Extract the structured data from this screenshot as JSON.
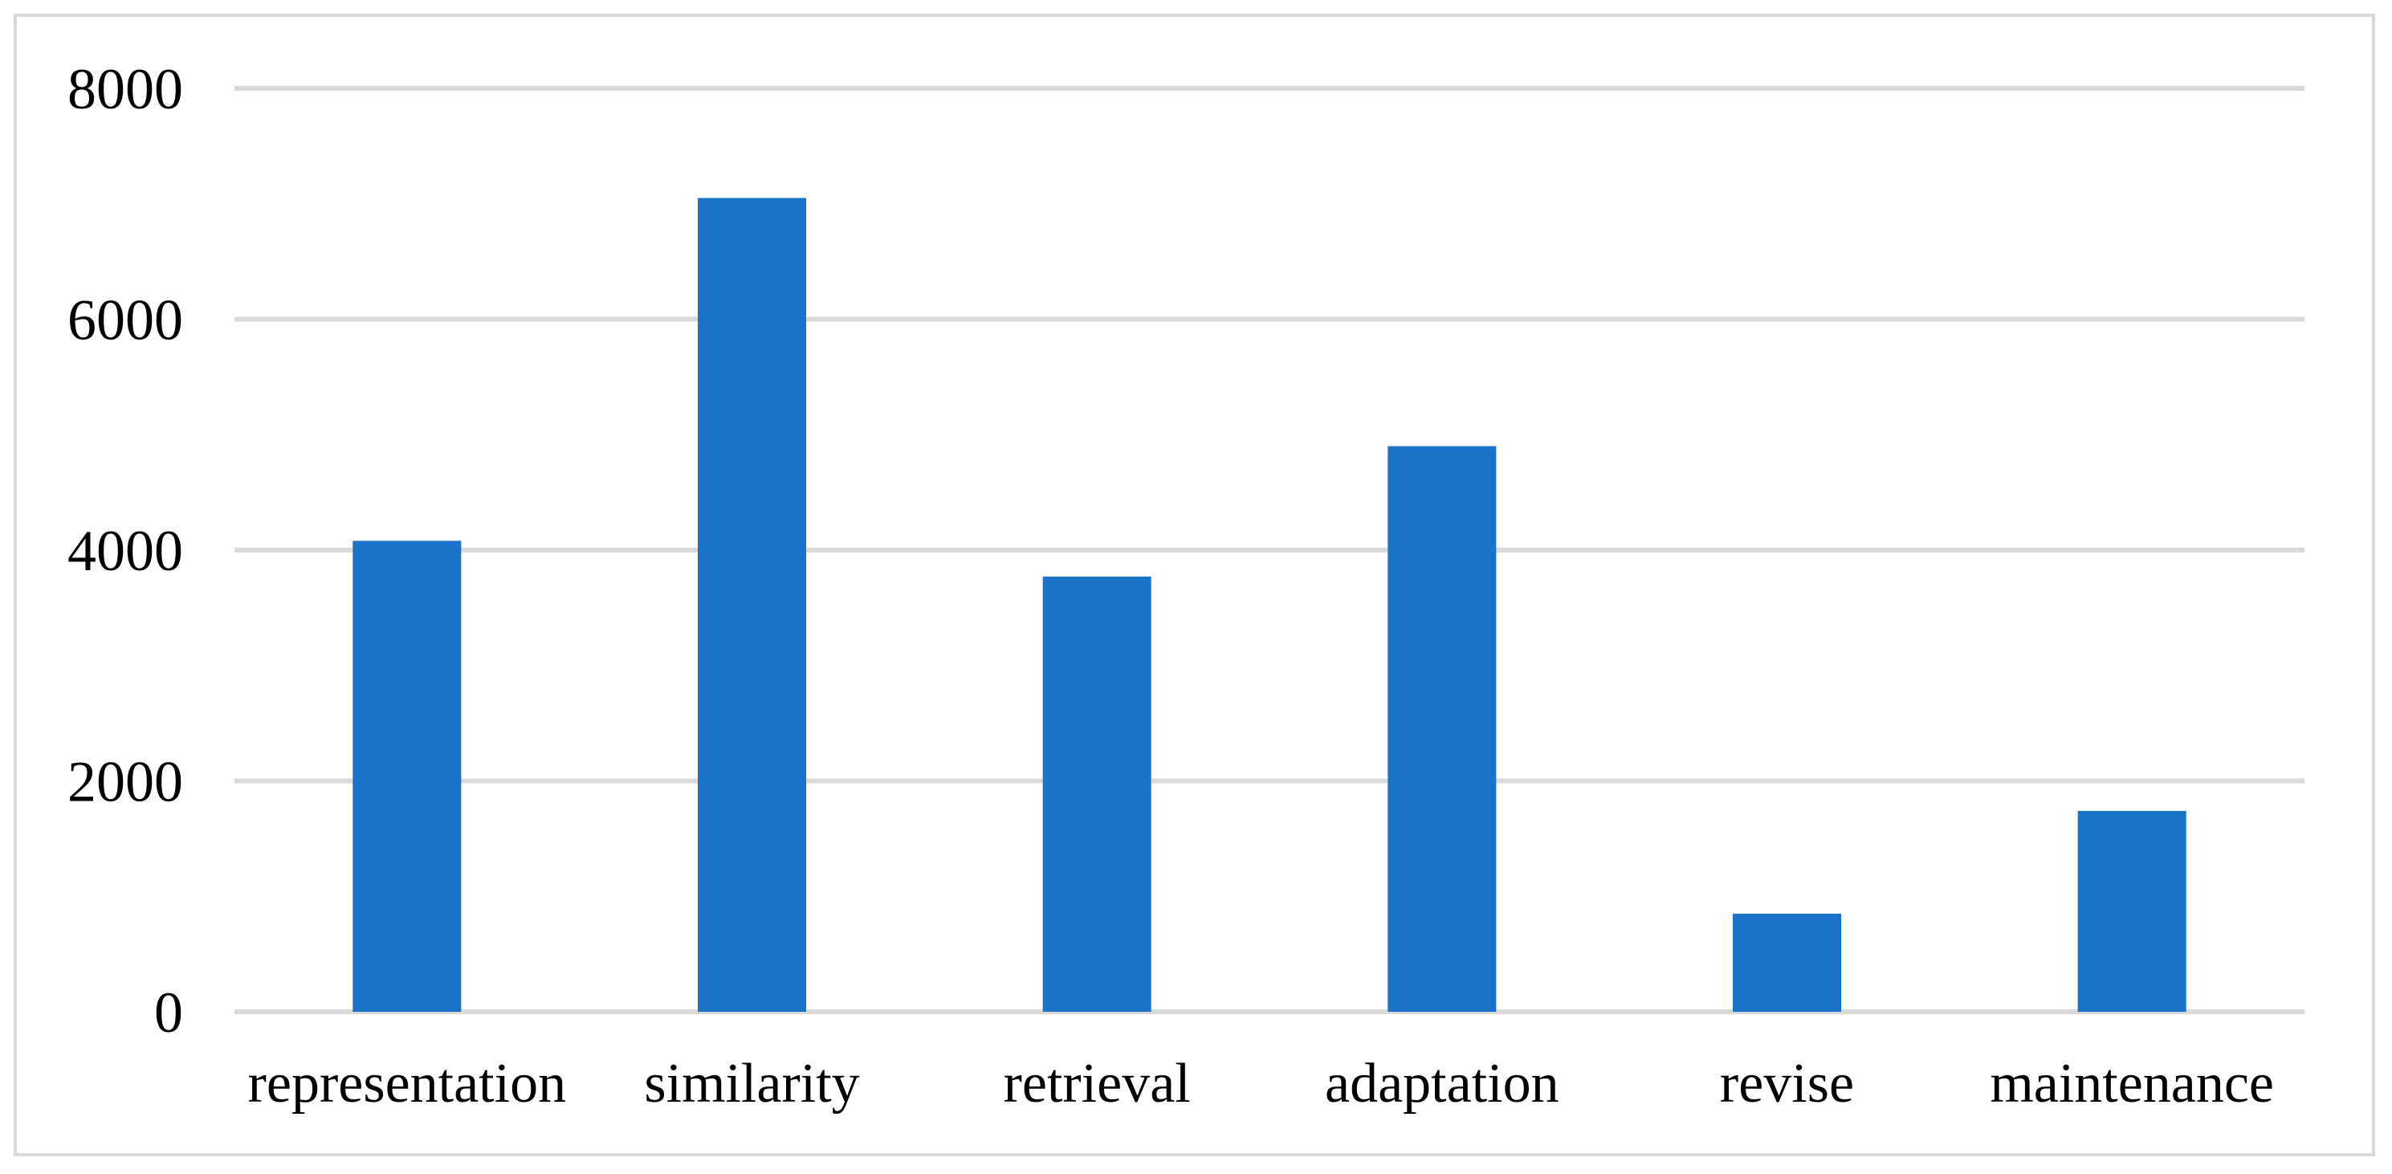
{
  "chart_data": {
    "type": "bar",
    "categories": [
      "representation",
      "similarity",
      "retrieval",
      "adaptation",
      "revise",
      "maintenance"
    ],
    "series": [
      {
        "values": [
          4080,
          7050,
          3770,
          4900,
          850,
          1740
        ],
        "color": "#1a73c8"
      }
    ],
    "title": "",
    "xlabel": "",
    "ylabel": "",
    "ylim": [
      0,
      8000
    ],
    "yticks": [
      0,
      2000,
      4000,
      6000,
      8000
    ],
    "ytick_labels": [
      "0",
      "2000",
      "4000",
      "6000",
      "8000"
    ],
    "grid": true,
    "gridline_color": "#d9d9d9",
    "legend": "none"
  }
}
